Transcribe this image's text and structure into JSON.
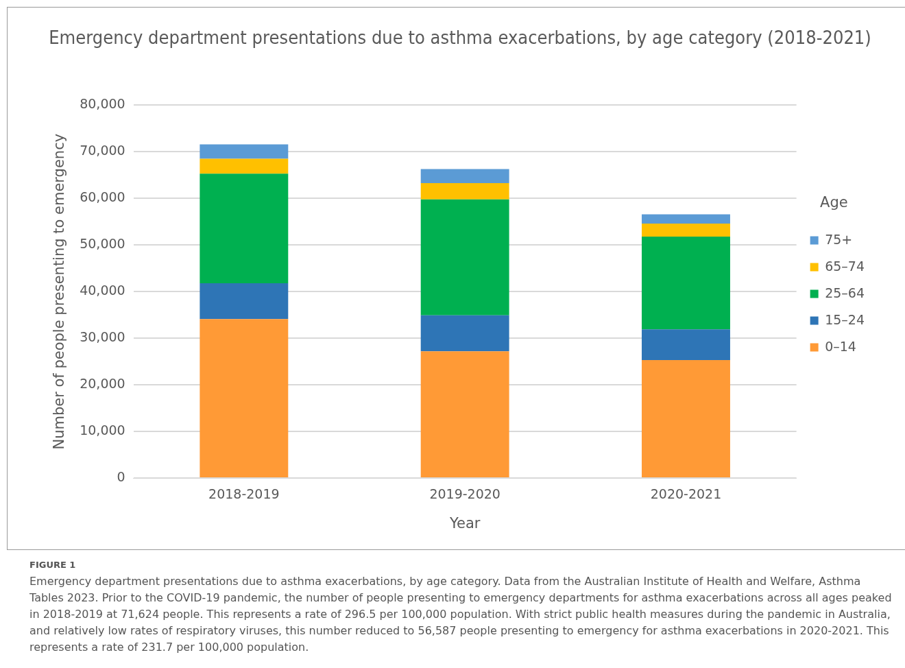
{
  "chart_data": {
    "type": "bar",
    "stacked": true,
    "title": "Emergency department presentations due to asthma exacerbations, by age category (2018-2021)",
    "xlabel": "Year",
    "ylabel": "Number of people presenting to emergency",
    "legend_title": "Age",
    "categories": [
      "2018-2019",
      "2019-2020",
      "2020-2021"
    ],
    "series": [
      {
        "name": "0–14",
        "color": "#ff9a36",
        "values": [
          34100,
          27200,
          25300
        ]
      },
      {
        "name": "15–24",
        "color": "#2e75b6",
        "values": [
          7700,
          7700,
          6600
        ]
      },
      {
        "name": "25–64",
        "color": "#00b050",
        "values": [
          23500,
          24900,
          19900
        ]
      },
      {
        "name": "65–74",
        "color": "#ffc000",
        "values": [
          3200,
          3500,
          2800
        ]
      },
      {
        "name": "75+",
        "color": "#5b9bd5",
        "values": [
          3100,
          3000,
          2000
        ]
      }
    ],
    "ylim": [
      0,
      80000
    ],
    "yticks": [
      0,
      {
        "value": 10000,
        "label": "10,000"
      },
      {
        "value": 20000,
        "label": "20,000"
      },
      {
        "value": 30000,
        "label": "30,000"
      },
      {
        "value": 40000,
        "label": "40,000"
      },
      {
        "value": 50000,
        "label": "50,000"
      },
      {
        "value": 60000,
        "label": "60,000"
      },
      {
        "value": 70000,
        "label": "70,000"
      },
      {
        "value": 80000,
        "label": "80,000"
      }
    ],
    "grid": "y",
    "legend": "right",
    "annotations": [
      "FIGURE 1",
      "Emergency department presentations due to asthma exacerbations, by age category. Data from the Australian Institute of Health and Welfare, Asthma Tables 2023. Prior to the COVID-19 pandemic, the number of people presenting to emergency departments for asthma exacerbations across all ages peaked in 2018-2019 at 71,624 people. This represents a rate of 296.5 per 100,000 population. With strict public health measures during the pandemic in Australia, and relatively low rates of respiratory viruses, this number reduced to 56,587 people presenting to emergency for asthma exacerbations in 2020-2021. This represents a rate of 231.7 per 100,000 population."
    ]
  }
}
